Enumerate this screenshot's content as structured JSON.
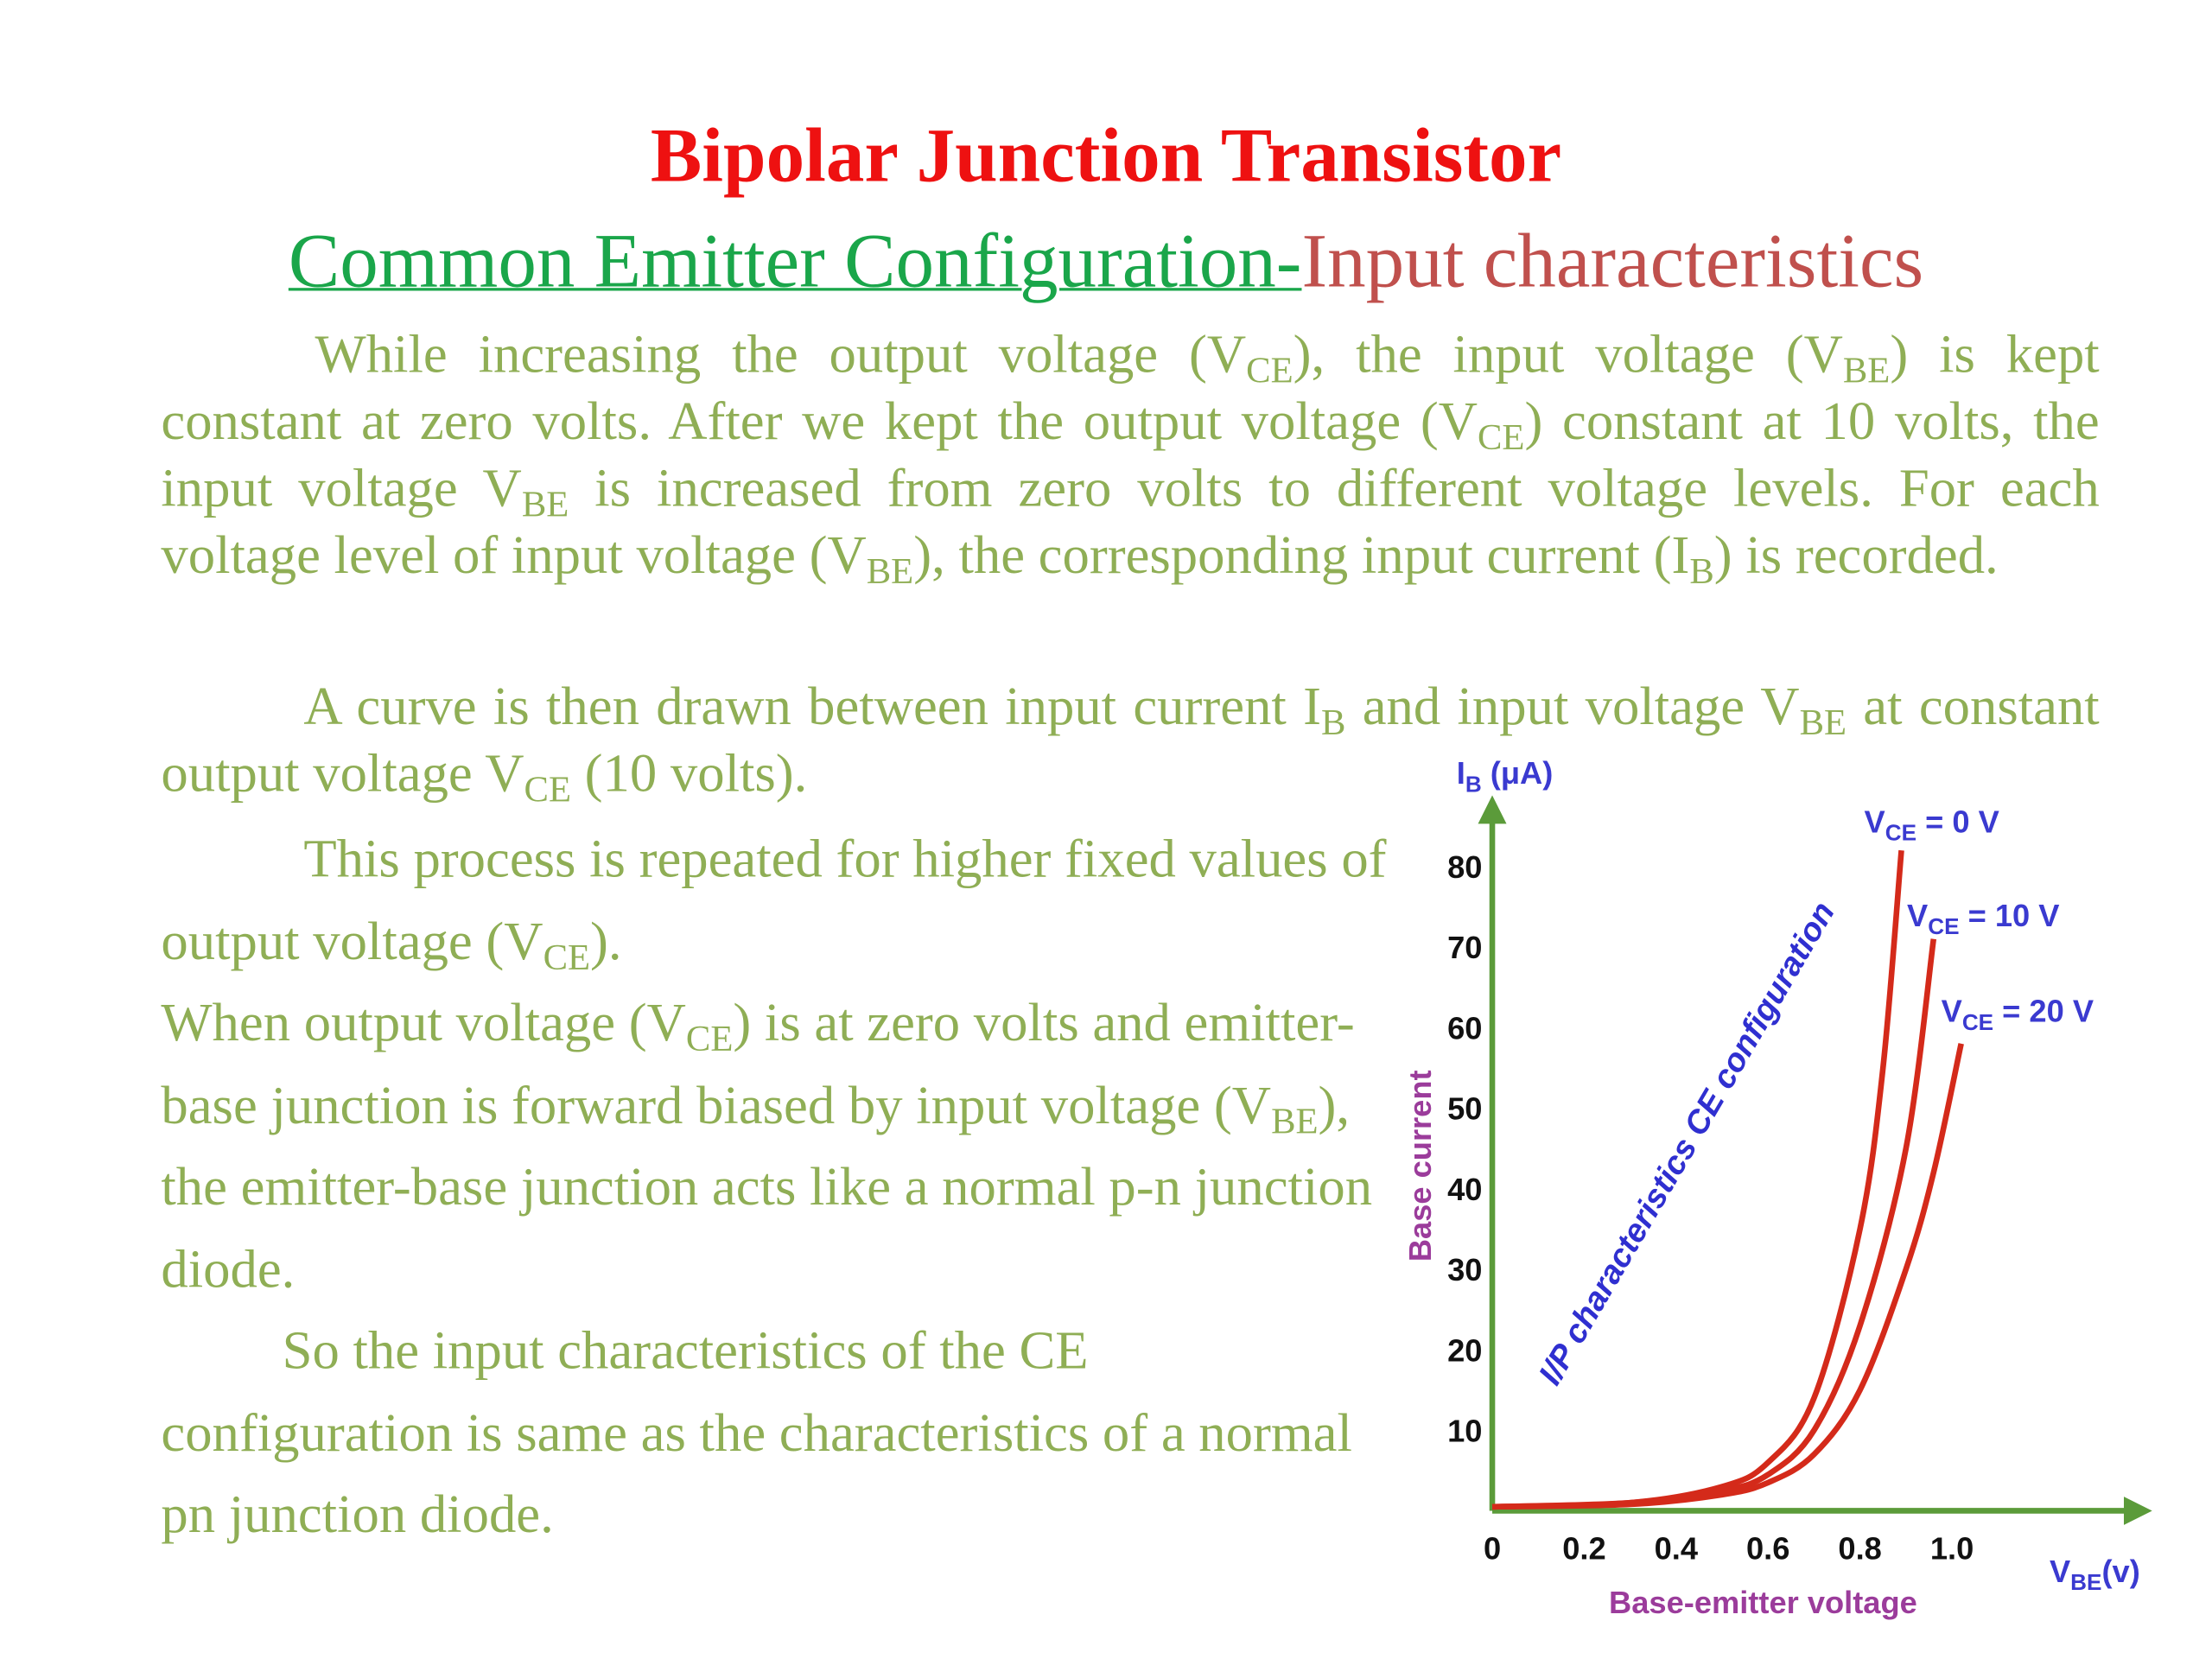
{
  "header": {
    "title": "Bipolar Junction Transistor",
    "subtitle_link": "Common Emitter Configuration-",
    "subtitle_rest": "Input characteristics"
  },
  "paragraphs": [
    [
      "While increasing the output voltage (V",
      {
        "sub": "CE"
      },
      "), the input voltage (V",
      {
        "sub": "BE"
      },
      ") is kept constant at zero volts. After we kept the output voltage (V",
      {
        "sub": "CE"
      },
      ") constant at 10 volts, the input voltage V",
      {
        "sub": "BE"
      },
      " is increased from zero volts to different voltage levels. For each voltage level of input voltage (V",
      {
        "sub": "BE"
      },
      "), the corresponding input current (I",
      {
        "sub": "B"
      },
      ") is recorded."
    ],
    [
      "A curve is then drawn between input current I",
      {
        "sub": "B"
      },
      " and input voltage V",
      {
        "sub": "BE"
      },
      " at constant output voltage V",
      {
        "sub": "CE"
      },
      " (10 volts)."
    ],
    [
      "This process is repeated for higher fixed values of output voltage (V",
      {
        "sub": "CE"
      },
      ")."
    ],
    [
      "When output voltage (V",
      {
        "sub": "CE"
      },
      ") is at zero volts and emitter-base junction is forward biased by input voltage (V",
      {
        "sub": "BE"
      },
      "), the emitter-base junction acts like a normal p-n junction diode."
    ],
    [
      "So the input characteristics of the CE configuration is same as the characteristics of a normal pn junction diode."
    ]
  ],
  "figure": {
    "y_title": [
      "I",
      {
        "sub": "B"
      },
      " (μA)"
    ],
    "y_axis_label": "Base current",
    "x_title": [
      "V",
      {
        "sub": "BE"
      },
      "(v)"
    ],
    "x_axis_label": "Base-emitter voltage",
    "annotation": "I/P characteristics CE configuration",
    "xlim": [
      0,
      1.42
    ],
    "ylim": [
      0,
      87.6
    ],
    "xticks": [
      0,
      0.2,
      0.4,
      0.6,
      0.8,
      {
        "value": 1,
        "label": "1.0"
      }
    ],
    "yticks": [
      10,
      20,
      30,
      40,
      50,
      60,
      70,
      80
    ],
    "series": [
      {
        "name": [
          "V",
          {
            "sub": "CE"
          },
          " = 0 V"
        ],
        "color": "#d42a1a",
        "x": [
          0,
          0.3,
          0.5,
          0.6,
          0.7,
          0.8,
          0.85,
          0.89
        ],
        "y": [
          0.5,
          1,
          3,
          6,
          14,
          35,
          55,
          82
        ]
      },
      {
        "name": [
          "V",
          {
            "sub": "CE"
          },
          " = 10 V"
        ],
        "color": "#d42a1a",
        "x": [
          0,
          0.3,
          0.5,
          0.6,
          0.7,
          0.8,
          0.9,
          0.96
        ],
        "y": [
          0.5,
          1,
          2.5,
          4.5,
          10,
          23,
          45,
          71
        ]
      },
      {
        "name": [
          "V",
          {
            "sub": "CE"
          },
          " = 20 V"
        ],
        "color": "#d42a1a",
        "x": [
          0,
          0.3,
          0.5,
          0.6,
          0.7,
          0.8,
          0.9,
          0.96,
          1.02
        ],
        "y": [
          0.5,
          0.8,
          2,
          3.5,
          7,
          15,
          30,
          42,
          58
        ]
      }
    ]
  }
}
